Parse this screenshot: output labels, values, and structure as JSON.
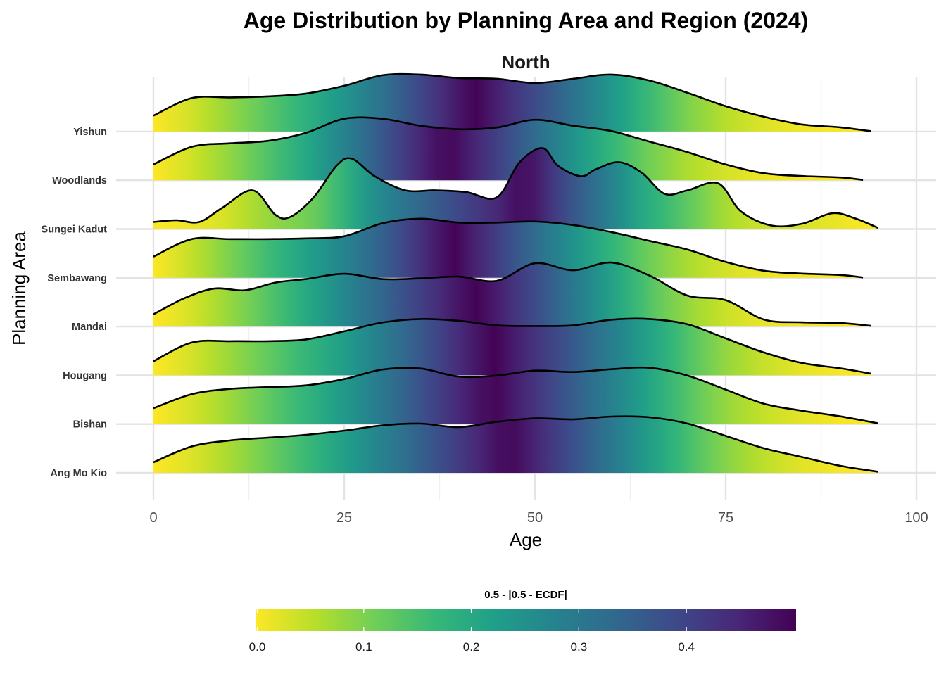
{
  "chart_data": {
    "type": "ridgeline",
    "title": "Age Distribution by Planning Area and Region (2024)",
    "facet": "North",
    "xlabel": "Age",
    "ylabel": "Planning Area",
    "xlim": [
      0,
      100
    ],
    "x_ticks": [
      0,
      25,
      50,
      75,
      100
    ],
    "grid": true,
    "legend": {
      "title": "0.5 - |0.5 - ECDF|",
      "position": "bottom",
      "ticks": [
        0.0,
        0.1,
        0.2,
        0.3,
        0.4
      ],
      "tick_labels": [
        "0.0",
        "0.1",
        "0.2",
        "0.3",
        "0.4"
      ],
      "range": [
        0,
        0.5
      ],
      "colormap": "viridis",
      "colors": [
        "#fde725",
        "#5ec962",
        "#21918c",
        "#3b528b",
        "#440154"
      ]
    },
    "series": [
      {
        "name": "Ang Mo Kio",
        "median": 49,
        "x": [
          0,
          5,
          10,
          15,
          20,
          25,
          30,
          35,
          40,
          45,
          50,
          55,
          60,
          65,
          70,
          75,
          80,
          85,
          90,
          95
        ],
        "density": [
          0.3,
          0.75,
          0.92,
          1.0,
          1.08,
          1.2,
          1.35,
          1.4,
          1.3,
          1.45,
          1.55,
          1.52,
          1.6,
          1.58,
          1.4,
          1.05,
          0.7,
          0.45,
          0.2,
          0.03
        ]
      },
      {
        "name": "Bishan",
        "median": 50,
        "x": [
          0,
          5,
          10,
          15,
          20,
          25,
          30,
          35,
          40,
          45,
          50,
          55,
          60,
          65,
          70,
          75,
          80,
          85,
          90,
          95
        ],
        "density": [
          0.45,
          0.85,
          1.0,
          1.05,
          1.1,
          1.28,
          1.55,
          1.58,
          1.35,
          1.38,
          1.52,
          1.48,
          1.56,
          1.6,
          1.38,
          0.98,
          0.58,
          0.38,
          0.22,
          0.02
        ]
      },
      {
        "name": "Hougang",
        "median": 45,
        "x": [
          0,
          5,
          10,
          15,
          20,
          25,
          30,
          35,
          40,
          45,
          50,
          55,
          60,
          65,
          70,
          75,
          80,
          85,
          90,
          94
        ],
        "density": [
          0.4,
          0.93,
          0.97,
          0.97,
          1.02,
          1.25,
          1.5,
          1.6,
          1.55,
          1.42,
          1.4,
          1.42,
          1.58,
          1.6,
          1.45,
          1.05,
          0.65,
          0.35,
          0.2,
          0.05
        ]
      },
      {
        "name": "Mandai",
        "median": 44,
        "x": [
          0,
          4,
          8,
          12,
          16,
          20,
          25,
          30,
          35,
          40,
          45,
          50,
          55,
          60,
          65,
          70,
          75,
          80,
          85,
          90,
          94
        ],
        "density": [
          0.35,
          0.8,
          1.08,
          1.03,
          1.25,
          1.35,
          1.5,
          1.35,
          1.37,
          1.42,
          1.3,
          1.8,
          1.6,
          1.82,
          1.45,
          0.88,
          0.75,
          0.2,
          0.12,
          0.1,
          0.02
        ]
      },
      {
        "name": "Sembawang",
        "median": 39,
        "x": [
          0,
          5,
          10,
          15,
          20,
          25,
          30,
          35,
          40,
          45,
          50,
          55,
          60,
          65,
          70,
          75,
          80,
          85,
          90,
          93
        ],
        "density": [
          0.6,
          1.1,
          1.1,
          1.1,
          1.12,
          1.18,
          1.55,
          1.68,
          1.57,
          1.57,
          1.6,
          1.5,
          1.3,
          1.05,
          0.8,
          0.45,
          0.2,
          0.12,
          0.08,
          0.01
        ]
      },
      {
        "name": "Sungei Kadut",
        "median": 50,
        "x": [
          0,
          3,
          6,
          9,
          13,
          16,
          18,
          21,
          24,
          26,
          29,
          33,
          37,
          41,
          45,
          48,
          51,
          53,
          56,
          58,
          61,
          64,
          67,
          70,
          74,
          77,
          81,
          85,
          89,
          92,
          95
        ],
        "density": [
          0.2,
          0.25,
          0.2,
          0.6,
          1.1,
          0.4,
          0.35,
          0.9,
          1.8,
          2.0,
          1.5,
          1.1,
          1.1,
          1.05,
          0.9,
          1.9,
          2.3,
          1.8,
          1.5,
          1.7,
          1.9,
          1.6,
          1.0,
          1.1,
          1.3,
          0.5,
          0.1,
          0.15,
          0.45,
          0.3,
          0.03
        ]
      },
      {
        "name": "Woodlands",
        "median": 40,
        "x": [
          0,
          5,
          10,
          15,
          20,
          25,
          30,
          35,
          40,
          45,
          50,
          55,
          60,
          65,
          70,
          75,
          80,
          85,
          90,
          93
        ],
        "density": [
          0.45,
          0.95,
          1.05,
          1.12,
          1.35,
          1.75,
          1.75,
          1.55,
          1.45,
          1.5,
          1.72,
          1.55,
          1.4,
          1.1,
          0.8,
          0.45,
          0.2,
          0.12,
          0.08,
          0.01
        ]
      },
      {
        "name": "Yishun",
        "median": 42,
        "x": [
          0,
          5,
          10,
          15,
          20,
          25,
          30,
          35,
          40,
          45,
          50,
          55,
          60,
          65,
          70,
          75,
          80,
          85,
          90,
          94
        ],
        "density": [
          0.45,
          0.95,
          0.97,
          1.0,
          1.08,
          1.3,
          1.6,
          1.62,
          1.52,
          1.5,
          1.38,
          1.5,
          1.62,
          1.45,
          1.1,
          0.72,
          0.42,
          0.2,
          0.12,
          0.01
        ]
      }
    ]
  }
}
